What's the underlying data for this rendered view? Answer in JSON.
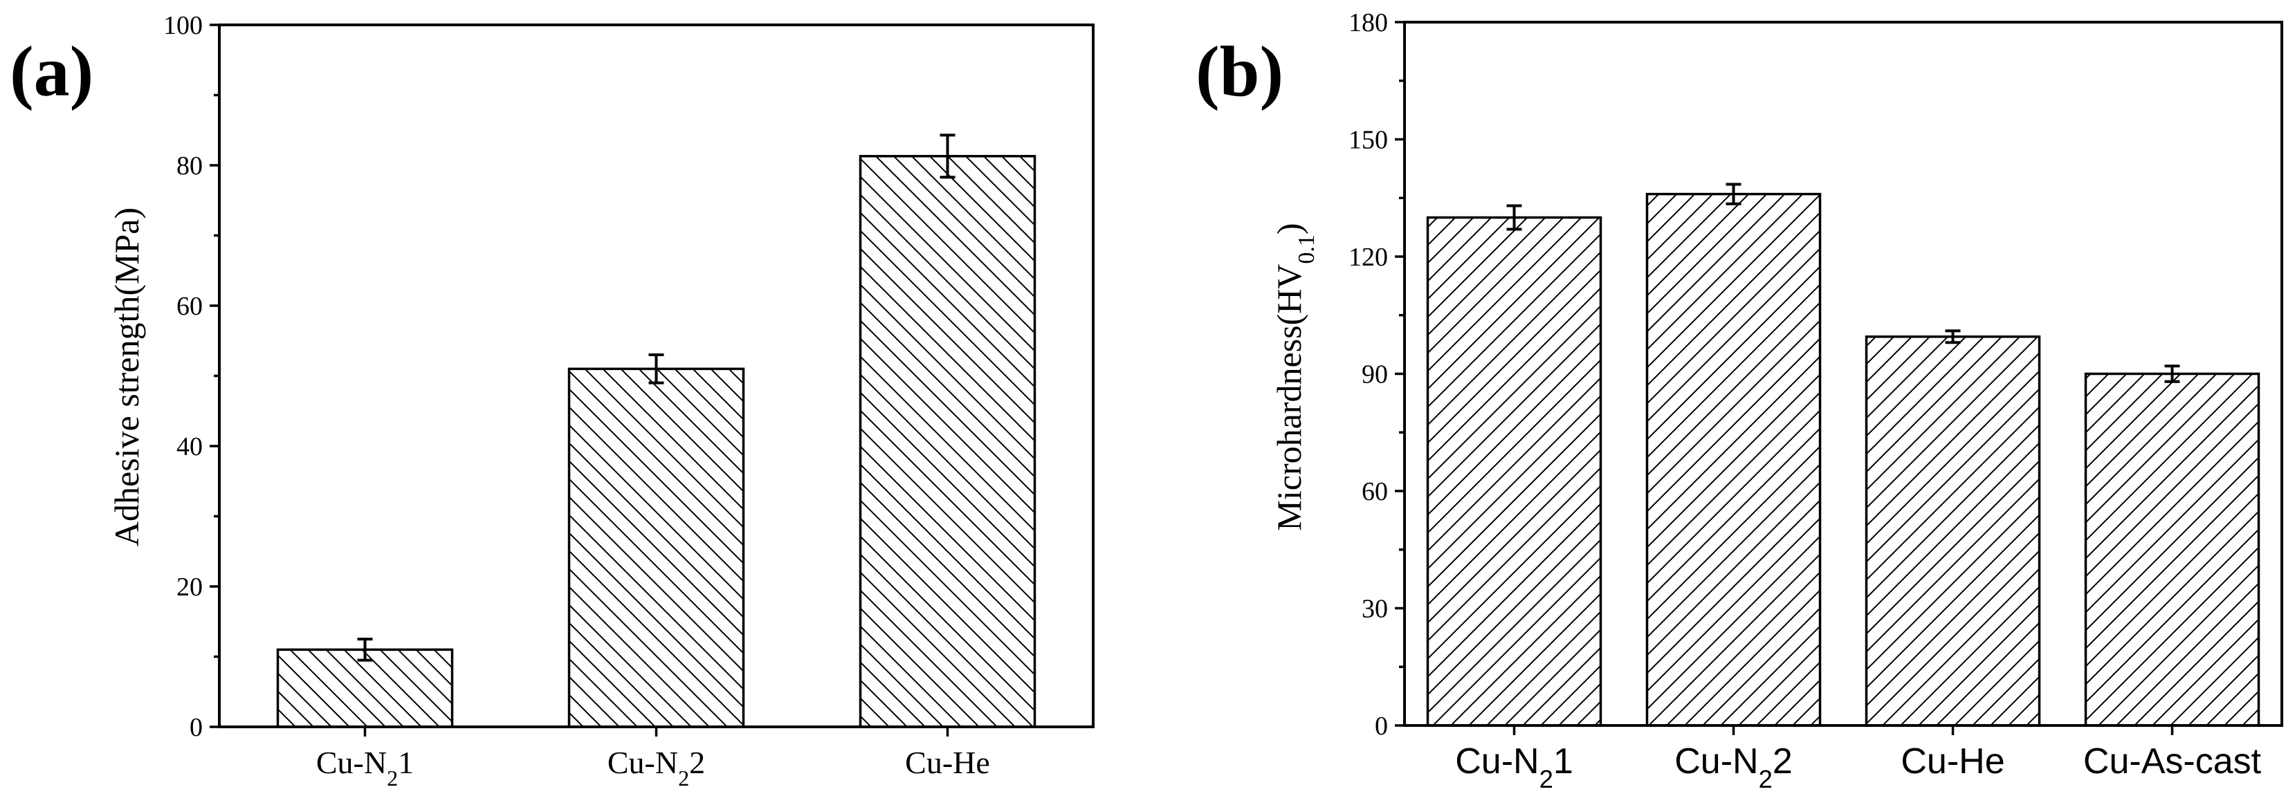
{
  "chart_data": [
    {
      "panel_label": "(a)",
      "type": "bar",
      "categories": [
        {
          "main": "Cu-N",
          "sub": "2",
          "tail": "1"
        },
        {
          "main": "Cu-N",
          "sub": "2",
          "tail": "2"
        },
        {
          "main": "Cu-He",
          "sub": "",
          "tail": ""
        }
      ],
      "values": [
        11,
        51,
        81.3
      ],
      "errors": [
        1.5,
        2.0,
        3.0
      ],
      "ylabel": "Adhesive strength(MPa)",
      "xlabel": "",
      "ylim": [
        0,
        100
      ],
      "yticks": [
        0,
        20,
        40,
        60,
        80,
        100
      ],
      "hatch": "backslash",
      "grid": false
    },
    {
      "panel_label": "(b)",
      "type": "bar",
      "categories": [
        {
          "main": "Cu-N",
          "sub": "2",
          "tail": "1"
        },
        {
          "main": "Cu-N",
          "sub": "2",
          "tail": "2"
        },
        {
          "main": "Cu-He",
          "sub": "",
          "tail": ""
        },
        {
          "main": "Cu-As-cast",
          "sub": "",
          "tail": ""
        }
      ],
      "values": [
        130,
        136,
        99.5,
        90
      ],
      "errors": [
        3.0,
        2.5,
        1.5,
        2.0
      ],
      "ylabel": {
        "main": "Microhardness(HV",
        "sub": "0.1",
        "tail": ")"
      },
      "xlabel": "",
      "ylim": [
        0,
        180
      ],
      "yticks": [
        0,
        30,
        60,
        90,
        120,
        150,
        180
      ],
      "hatch": "slash",
      "grid": false
    }
  ]
}
